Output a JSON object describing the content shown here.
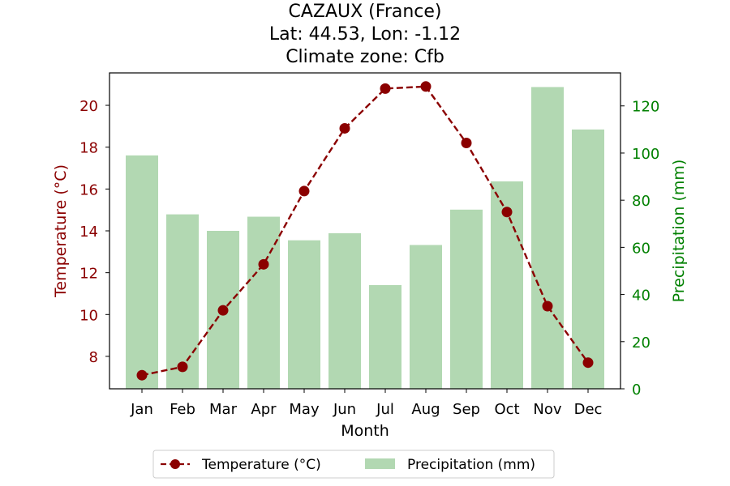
{
  "chart_data": {
    "type": "bar+line",
    "title_lines": [
      "CAZAUX (France)",
      "Lat: 44.53, Lon: -1.12",
      "Climate zone: Cfb"
    ],
    "xlabel": "Month",
    "categories": [
      "Jan",
      "Feb",
      "Mar",
      "Apr",
      "May",
      "Jun",
      "Jul",
      "Aug",
      "Sep",
      "Oct",
      "Nov",
      "Dec"
    ],
    "y_left": {
      "label": "Temperature (°C)",
      "range": [
        6.45,
        21.55
      ],
      "ticks": [
        8,
        10,
        12,
        14,
        16,
        18,
        20
      ],
      "color": "#8b0000"
    },
    "y_right": {
      "label": "Precipitation (mm)",
      "range": [
        0,
        134
      ],
      "ticks": [
        0,
        20,
        40,
        60,
        80,
        100,
        120
      ],
      "color": "#008000"
    },
    "series": [
      {
        "name": "Temperature (°C)",
        "kind": "line",
        "axis": "left",
        "color": "#8b0000",
        "style": "dashed-with-circle-markers",
        "values": [
          7.1,
          7.5,
          10.2,
          12.4,
          15.9,
          18.9,
          20.8,
          20.9,
          18.2,
          14.9,
          10.4,
          7.7
        ]
      },
      {
        "name": "Precipitation (mm)",
        "kind": "bar",
        "axis": "right",
        "color": "#b2d8b2",
        "values": [
          99,
          74,
          67,
          73,
          63,
          66,
          44,
          61,
          76,
          88,
          128,
          110
        ]
      }
    ],
    "legend": {
      "position": "bottom-center",
      "entries": [
        "Temperature (°C)",
        "Precipitation (mm)"
      ]
    },
    "grid": false
  }
}
